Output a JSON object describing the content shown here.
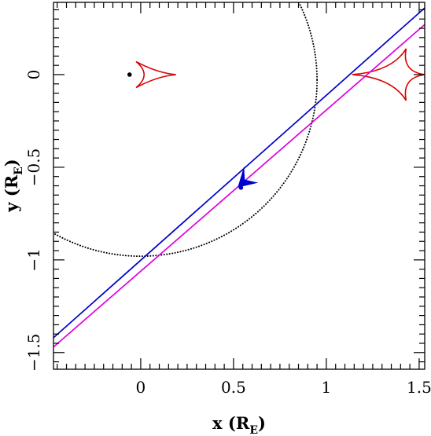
{
  "chart_data": {
    "type": "line",
    "xlim": [
      -0.47,
      1.53
    ],
    "ylim": [
      -1.59,
      0.39
    ],
    "x_ticks": [
      {
        "value": 0,
        "label": "0"
      },
      {
        "value": 0.5,
        "label": "0.5"
      },
      {
        "value": 1,
        "label": "1"
      },
      {
        "value": 1.5,
        "label": "1.5"
      }
    ],
    "y_ticks": [
      {
        "value": 0,
        "label": "0"
      },
      {
        "value": -0.5,
        "label": "−0.5"
      },
      {
        "value": -1,
        "label": "−1"
      },
      {
        "value": -1.5,
        "label": "−1.5"
      }
    ],
    "xlabel": {
      "main": "x (R",
      "sub": "E",
      "close": ")"
    },
    "ylabel": {
      "main": "y (R",
      "sub": "E",
      "close": ")"
    },
    "grid": false,
    "colors": {
      "blue": "#0000cc",
      "magenta": "#dd00dd",
      "red": "#dd0000",
      "black": "#000000"
    },
    "series": [
      {
        "style": "solid",
        "color": "blue",
        "points": [
          [
            -0.47,
            -1.42
          ],
          [
            1.53,
            0.36
          ]
        ]
      },
      {
        "style": "solid",
        "color": "magenta",
        "points": [
          [
            -0.47,
            -1.47
          ],
          [
            1.53,
            0.27
          ]
        ]
      }
    ],
    "circles": [
      {
        "style": "dotted",
        "cx": 0.0,
        "cy": -0.03,
        "r": 0.95
      },
      {
        "style": "dotted",
        "cx": 1.62,
        "cy": 0.0,
        "r": 0.09
      }
    ],
    "caustics": [
      {
        "color": "red",
        "cx": 0.09,
        "cy": 0.0,
        "points": [
          [
            0.19,
            0.0
          ],
          [
            -0.025,
            0.07
          ],
          [
            -0.025,
            -0.07
          ]
        ]
      },
      {
        "color": "red",
        "cx": 1.38,
        "cy": 0.0,
        "points": [
          [
            1.53,
            0.0
          ],
          [
            1.43,
            0.14
          ],
          [
            1.14,
            0.0
          ],
          [
            1.43,
            -0.14
          ]
        ]
      }
    ],
    "markers": [
      {
        "x": -0.06,
        "y": 0.0,
        "color": "black"
      },
      {
        "x": 0.54,
        "y": -0.61,
        "color": "blue"
      }
    ],
    "arrow": {
      "color": "blue",
      "x": 0.565,
      "y": -0.575,
      "direction": "lower-left"
    }
  }
}
